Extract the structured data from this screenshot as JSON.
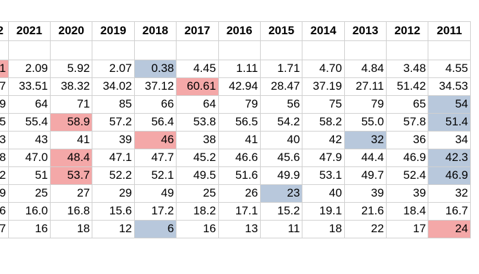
{
  "sheet": {
    "headers": [
      "2",
      "2021",
      "2020",
      "2019",
      "2018",
      "2017",
      "2016",
      "2015",
      "2014",
      "2013",
      "2012",
      "2011"
    ],
    "rows": [
      [
        "1",
        "2.09",
        "5.92",
        "2.07",
        "0.38",
        "4.45",
        "1.11",
        "1.71",
        "4.70",
        "4.84",
        "3.48",
        "4.55"
      ],
      [
        "7",
        "33.51",
        "38.32",
        "34.02",
        "37.12",
        "60.61",
        "42.94",
        "28.47",
        "37.19",
        "27.11",
        "51.42",
        "34.53"
      ],
      [
        "9",
        "64",
        "71",
        "85",
        "66",
        "64",
        "79",
        "56",
        "75",
        "79",
        "65",
        "54"
      ],
      [
        "5",
        "55.4",
        "58.9",
        "57.2",
        "56.4",
        "53.8",
        "56.5",
        "54.2",
        "58.2",
        "55.0",
        "57.8",
        "51.4"
      ],
      [
        "3",
        "43",
        "41",
        "39",
        "46",
        "38",
        "41",
        "40",
        "42",
        "32",
        "36",
        "34"
      ],
      [
        "8",
        "47.0",
        "48.4",
        "47.1",
        "47.7",
        "45.2",
        "46.6",
        "45.6",
        "47.9",
        "44.4",
        "46.9",
        "42.3"
      ],
      [
        "2",
        "51",
        "53.7",
        "52.2",
        "52.1",
        "49.5",
        "51.6",
        "49.9",
        "53.1",
        "49.7",
        "52.4",
        "46.9"
      ],
      [
        "9",
        "25",
        "27",
        "29",
        "49",
        "25",
        "26",
        "23",
        "40",
        "39",
        "39",
        "32"
      ],
      [
        "6",
        "16.0",
        "16.8",
        "15.6",
        "17.2",
        "18.2",
        "17.1",
        "15.2",
        "19.1",
        "21.6",
        "18.4",
        "16.7"
      ],
      [
        "7",
        "16",
        "18",
        "12",
        "6",
        "16",
        "13",
        "11",
        "18",
        "22",
        "17",
        "24"
      ]
    ],
    "highlights": {
      "red": [
        [
          0,
          0
        ],
        [
          1,
          5
        ],
        [
          3,
          2
        ],
        [
          4,
          4
        ],
        [
          5,
          2
        ],
        [
          6,
          2
        ],
        [
          9,
          11
        ]
      ],
      "blue": [
        [
          0,
          4
        ],
        [
          2,
          11
        ],
        [
          3,
          11
        ],
        [
          4,
          9
        ],
        [
          5,
          11
        ],
        [
          6,
          11
        ],
        [
          7,
          7
        ],
        [
          9,
          4
        ]
      ]
    },
    "colors": {
      "red_highlight": "#f4a8a8",
      "blue_highlight": "#b8c8dc",
      "grid_line": "#d0d0d0",
      "page_break_line": "#5555cc"
    }
  }
}
